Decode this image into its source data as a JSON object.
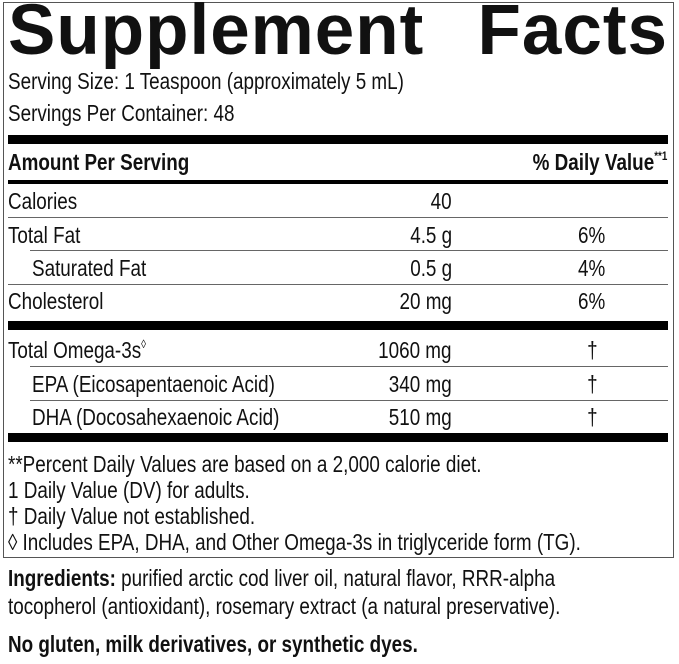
{
  "title": {
    "word1": "Supplement",
    "word2": "Facts"
  },
  "serving_size": "Serving Size: 1 Teaspoon (approximately 5 mL)",
  "servings_per_container": "Servings Per Container: 48",
  "header": {
    "amount_per_serving": "Amount Per Serving",
    "daily_value": "% Daily Value",
    "daily_value_mark": "**1"
  },
  "rows": [
    {
      "name": "Calories",
      "amount": "40",
      "dv": ""
    },
    {
      "name": "Total Fat",
      "amount": "4.5 g",
      "dv": "6%"
    },
    {
      "name": "Saturated Fat",
      "amount": "0.5 g",
      "dv": "4%"
    },
    {
      "name": "Cholesterol",
      "amount": "20 mg",
      "dv": "6%"
    }
  ],
  "omega_rows": [
    {
      "name": "Total Omega-3s",
      "mark": "◊",
      "amount": "1060 mg",
      "dv": "†"
    },
    {
      "name": "EPA (Eicosapentaenoic Acid)",
      "amount": "340 mg",
      "dv": "†"
    },
    {
      "name": "DHA (Docosahexaenoic Acid)",
      "amount": "510 mg",
      "dv": "†"
    }
  ],
  "footnotes": [
    "**Percent Daily Values are based on a 2,000 calorie diet.",
    "1 Daily Value (DV) for adults.",
    "† Daily Value not established.",
    "◊ Includes EPA, DHA, and Other Omega-3s in triglyceride form (TG)."
  ],
  "ingredients": {
    "label": "Ingredients:",
    "line1": " purified arctic cod liver oil, natural flavor, RRR-alpha",
    "line2": "tocopherol (antioxidant), rosemary extract (a natural preservative)."
  },
  "allergen_statement": "No gluten, milk derivatives, or synthetic dyes."
}
